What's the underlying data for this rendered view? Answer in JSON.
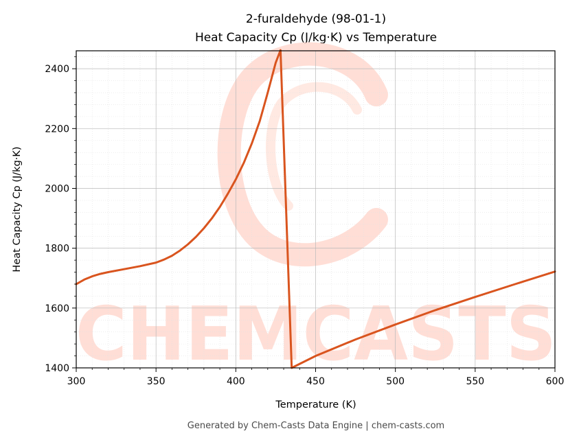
{
  "chart_data": {
    "type": "line",
    "title": "2-furaldehyde (98-01-1)",
    "subtitle": "Heat Capacity Cp (J/kg·K) vs Temperature",
    "xlabel": "Temperature (K)",
    "ylabel": "Heat Capacity Cp (J/kg·K)",
    "xlim": [
      300,
      600
    ],
    "ylim": [
      1400,
      2460
    ],
    "xticks": [
      300,
      350,
      400,
      450,
      500,
      550,
      600
    ],
    "yticks": [
      1400,
      1600,
      1800,
      2000,
      2200,
      2400
    ],
    "grid": true,
    "series": [
      {
        "color": "#d9541e",
        "x": [
          300,
          305,
          310,
          315,
          320,
          330,
          340,
          350,
          355,
          360,
          365,
          370,
          375,
          380,
          385,
          390,
          395,
          400,
          405,
          410,
          415,
          420,
          425,
          428,
          435,
          450,
          475,
          500,
          525,
          550,
          575,
          600
        ],
        "y": [
          1680,
          1695,
          1706,
          1714,
          1720,
          1730,
          1740,
          1752,
          1762,
          1775,
          1792,
          1813,
          1838,
          1867,
          1900,
          1938,
          1982,
          2030,
          2085,
          2150,
          2225,
          2320,
          2420,
          2462,
          1400,
          1440,
          1495,
          1545,
          1593,
          1637,
          1680,
          1722
        ]
      }
    ]
  },
  "watermark": {
    "text": "CHEMCASTS",
    "color": "#ffd9d0"
  },
  "footer": "Generated by Chem-Casts Data Engine | chem-casts.com"
}
